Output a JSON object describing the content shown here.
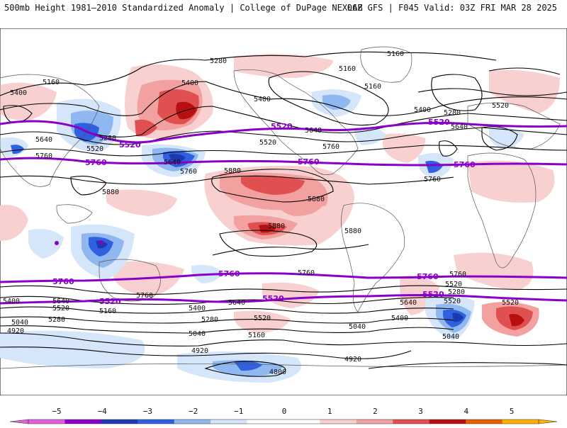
{
  "header": {
    "title_left": "500mb Height 1981–2010 Standardized Anomaly | College of DuPage NEXLAB",
    "title_right": "06Z GFS | F045 Valid: 03Z FRI MAR 28 2025"
  },
  "colorbar": {
    "ticks": [
      "−5",
      "−4",
      "−3",
      "−2",
      "−1",
      "0",
      "1",
      "2",
      "3",
      "4",
      "5"
    ],
    "tick_values": [
      -5,
      -4,
      -3,
      -2,
      -1,
      0,
      1,
      2,
      3,
      4,
      5
    ],
    "colors": [
      "#e060e0",
      "#8a00c8",
      "#1a3ab0",
      "#3060e0",
      "#90b8f0",
      "#d6e6fa",
      "#ffffff",
      "#ffffff",
      "#f8d0d0",
      "#f2a0a0",
      "#e05050",
      "#b81010",
      "#e66000",
      "#ffb000"
    ]
  },
  "colors": {
    "reference_contour": "#8a00c8",
    "height_contour": "#000000",
    "land_border": "#555555"
  },
  "contour_labels": {
    "l5160a": "5160",
    "l5280a": "5280",
    "l5160b": "5160",
    "l5160c": "5160",
    "l5400a": "5400",
    "l5400b": "5400",
    "l5400c": "5400",
    "l5280b": "5280",
    "l5520a": "5520",
    "l5640a": "5640",
    "l5760a": "5760",
    "l5520b": "5520",
    "l5280c": "5280",
    "l5520c": "5520",
    "l5520d": "5520",
    "l5640b": "5640",
    "l5760b": "5760",
    "l5760c": "5760",
    "l5880a": "5880",
    "l5880b": "5880",
    "l5880c": "5880",
    "l5880d": "5880",
    "l5880e": "5880",
    "l5640c": "5640",
    "l5760d": "5760",
    "l5760e": "5760",
    "l5520e": "5520",
    "l5520f": "5520",
    "l5760f": "5760",
    "l5640d": "5640",
    "l5640e": "5640",
    "l5280d": "5280",
    "l5400d": "5400",
    "l5520g": "5520",
    "l5520h": "5520",
    "l5400e": "5400",
    "l5640f": "5640",
    "l5160d": "5160",
    "l5160e": "5160",
    "l5280e": "5280",
    "l5040a": "5040",
    "l5040b": "5040",
    "l5040c": "5040",
    "l5040d": "5040",
    "l5040e": "5040",
    "l4920a": "4920",
    "l4920b": "4920",
    "l4920c": "4920",
    "l4800a": "4800",
    "l5280f": "5280",
    "l5400f": "5400",
    "l5520i": "5520",
    "l5640g": "5640",
    "l5760g": "5760"
  },
  "reference_labels": {
    "r5520a": "5520",
    "r5520b": "5520",
    "r5520c": "5520",
    "r5760a": "5760",
    "r5760b": "5760",
    "r5760c": "5760",
    "r5760d": "5760",
    "r5760e": "5760",
    "r5760f": "5760",
    "r5520d": "5520",
    "r5520e": "5520",
    "r5520f": "5520"
  }
}
